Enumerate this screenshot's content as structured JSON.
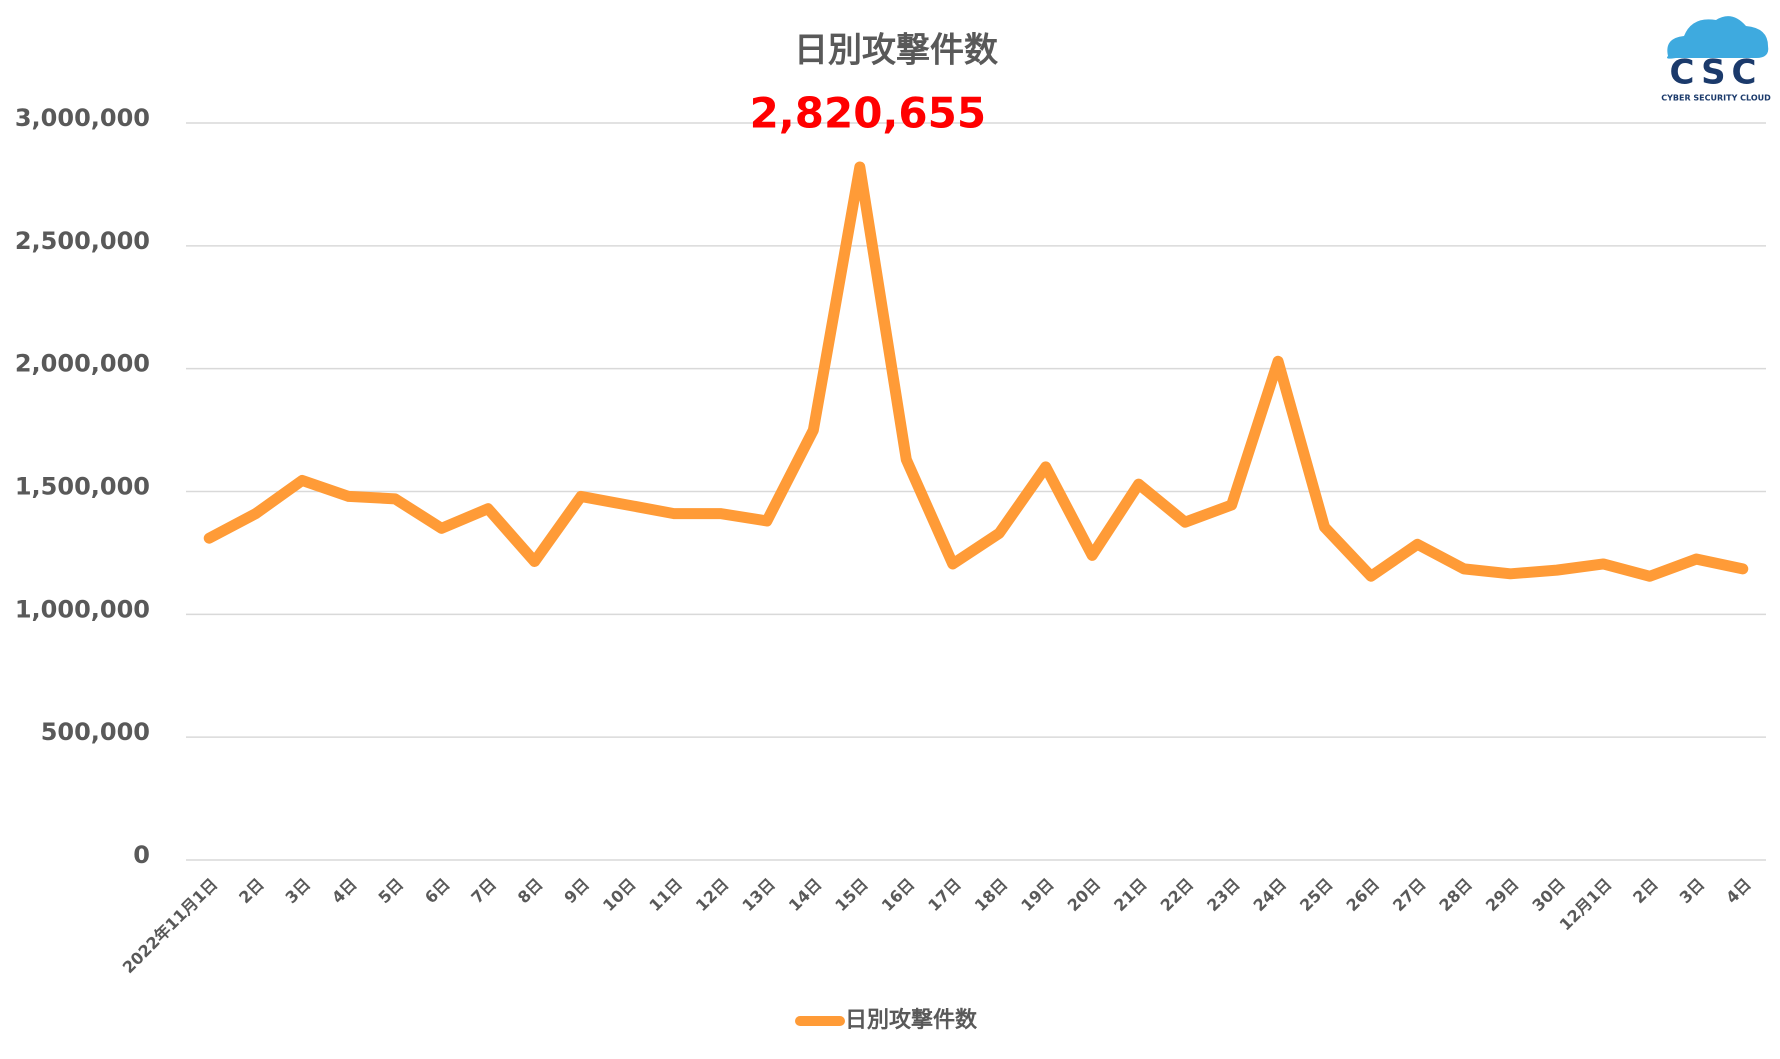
{
  "chart_data": {
    "type": "line",
    "title": "日別攻撃件数",
    "categories": [
      "2022年11月1日",
      "2日",
      "3日",
      "4日",
      "5日",
      "6日",
      "7日",
      "8日",
      "9日",
      "10日",
      "11日",
      "12日",
      "13日",
      "14日",
      "15日",
      "16日",
      "17日",
      "18日",
      "19日",
      "20日",
      "21日",
      "22日",
      "23日",
      "24日",
      "25日",
      "26日",
      "27日",
      "28日",
      "29日",
      "30日",
      "12月1日",
      "2日",
      "3日",
      "4日"
    ],
    "series": [
      {
        "name": "日別攻撃件数",
        "color": "#FF9B37",
        "values": [
          1310000,
          1410000,
          1545000,
          1480000,
          1470000,
          1350000,
          1430000,
          1215000,
          1480000,
          1445000,
          1410000,
          1410000,
          1380000,
          1750000,
          2820655,
          1630000,
          1205000,
          1330000,
          1600000,
          1240000,
          1530000,
          1375000,
          1445000,
          2030000,
          1355000,
          1155000,
          1285000,
          1185000,
          1165000,
          1180000,
          1205000,
          1155000,
          1225000,
          1185000
        ],
        "value_labels": [
          null,
          null,
          null,
          null,
          null,
          null,
          null,
          null,
          null,
          null,
          null,
          null,
          null,
          null,
          "2,820,655",
          null,
          null,
          null,
          null,
          null,
          null,
          null,
          null,
          null,
          null,
          null,
          null,
          null,
          null,
          null,
          null,
          null,
          null,
          null
        ]
      }
    ],
    "ylim": [
      0,
      3000000
    ],
    "yticks": [
      0,
      {
        "value": 500000,
        "label": "500,000"
      },
      {
        "value": 1000000,
        "label": "1,000,000"
      },
      {
        "value": 1500000,
        "label": "1,500,000"
      },
      {
        "value": 2000000,
        "label": "2,000,000"
      },
      {
        "value": 2500000,
        "label": "2,500,000"
      },
      {
        "value": 3000000,
        "label": "3,000,000"
      }
    ],
    "grid": true,
    "legend": "bottom",
    "logo": {
      "text": "CSC",
      "subtitle": "CYBER SECURITY CLOUD"
    }
  }
}
